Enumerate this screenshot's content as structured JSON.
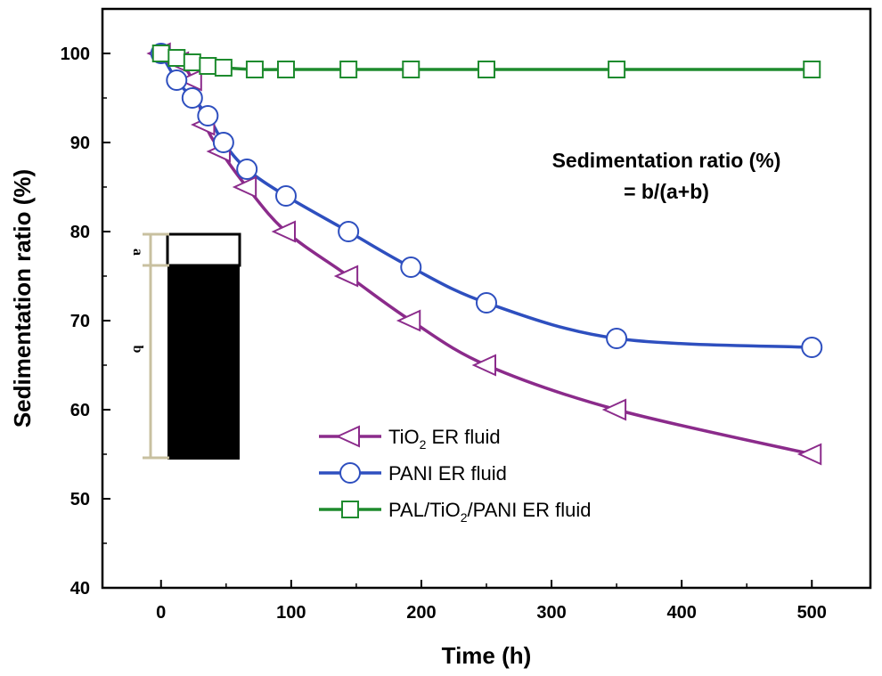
{
  "chart_data": {
    "type": "line",
    "title": "",
    "xlabel": "Time (h)",
    "ylabel": "Sedimentation ratio (%)",
    "xlim": [
      -45,
      545
    ],
    "ylim": [
      40,
      105
    ],
    "x_ticks": [
      0,
      100,
      200,
      300,
      400,
      500
    ],
    "y_ticks": [
      40,
      50,
      60,
      70,
      80,
      90,
      100
    ],
    "grid": false,
    "legend_position": "bottom-center",
    "annotation": {
      "line1": "Sedimentation ratio (%)",
      "line2": "= b/(a+b)"
    },
    "inset": {
      "label_a": "a",
      "label_b": "b"
    },
    "series": [
      {
        "name": "TiO2 ER fluid",
        "legend_parts": [
          "TiO",
          "2",
          " ER fluid"
        ],
        "marker": "triangle-left",
        "color": "#8B2B8B",
        "x": [
          0,
          14,
          24,
          34,
          46,
          66,
          96,
          144,
          192,
          250,
          350,
          500
        ],
        "y": [
          100,
          99,
          97,
          92,
          89,
          85,
          80,
          75,
          70,
          65,
          60,
          55
        ]
      },
      {
        "name": "PANI ER fluid",
        "legend_parts": [
          "PANI ER fluid"
        ],
        "marker": "circle",
        "color": "#2E4FBF",
        "x": [
          0,
          12,
          24,
          36,
          48,
          66,
          96,
          144,
          192,
          250,
          350,
          500
        ],
        "y": [
          100,
          97,
          95,
          93,
          90,
          87,
          84,
          80,
          76,
          72,
          68,
          67
        ]
      },
      {
        "name": "PAL/TiO2/PANI ER fluid",
        "legend_parts": [
          "PAL/TiO",
          "2",
          "/PANI ER fluid"
        ],
        "marker": "square",
        "color": "#1E8B2E",
        "x": [
          0,
          12,
          24,
          36,
          48,
          72,
          96,
          144,
          192,
          250,
          350,
          500
        ],
        "y": [
          100,
          99.5,
          99,
          98.6,
          98.4,
          98.2,
          98.2,
          98.2,
          98.2,
          98.2,
          98.2,
          98.2
        ]
      }
    ]
  }
}
